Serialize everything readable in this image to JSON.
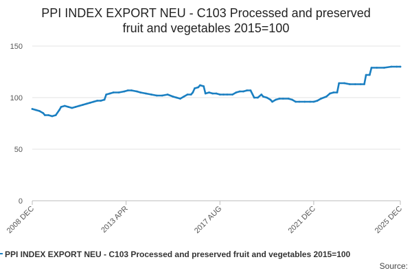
{
  "chart_data": {
    "type": "line",
    "title_lines": [
      "PPI INDEX EXPORT NEU - C103 Processed and preserved",
      "fruit and vegetables 2015=100"
    ],
    "x_tick_labels": [
      "2008 DEC",
      "2013 APR",
      "2017 AUG",
      "2021 DEC",
      "2025 DEC"
    ],
    "x_range": [
      "2008-12",
      "2025-12"
    ],
    "y_tick_labels": [
      "0",
      "50",
      "100",
      "150"
    ],
    "ylim": [
      0,
      150
    ],
    "grid": "horizontal",
    "legend_position": "bottom",
    "series": [
      {
        "name": "PPI INDEX EXPORT NEU - C103 Processed and preserved fruit and vegetables 2015=100",
        "color": "#1a7fc1",
        "points": [
          [
            "2008-12",
            89
          ],
          [
            "2009-02",
            88
          ],
          [
            "2009-04",
            87
          ],
          [
            "2009-06",
            85
          ],
          [
            "2009-07",
            83
          ],
          [
            "2009-09",
            83
          ],
          [
            "2009-11",
            82
          ],
          [
            "2010-01",
            83
          ],
          [
            "2010-03",
            88
          ],
          [
            "2010-04",
            91
          ],
          [
            "2010-06",
            92
          ],
          [
            "2010-08",
            91
          ],
          [
            "2010-10",
            90
          ],
          [
            "2010-12",
            91
          ],
          [
            "2011-02",
            92
          ],
          [
            "2011-04",
            93
          ],
          [
            "2011-06",
            94
          ],
          [
            "2011-08",
            95
          ],
          [
            "2011-10",
            96
          ],
          [
            "2011-12",
            97
          ],
          [
            "2012-02",
            97
          ],
          [
            "2012-04",
            98
          ],
          [
            "2012-05",
            103
          ],
          [
            "2012-07",
            104
          ],
          [
            "2012-09",
            105
          ],
          [
            "2012-12",
            105
          ],
          [
            "2013-03",
            106
          ],
          [
            "2013-05",
            107
          ],
          [
            "2013-07",
            107
          ],
          [
            "2013-10",
            106
          ],
          [
            "2013-12",
            105
          ],
          [
            "2014-03",
            104
          ],
          [
            "2014-06",
            103
          ],
          [
            "2014-09",
            102
          ],
          [
            "2014-12",
            102
          ],
          [
            "2015-03",
            103
          ],
          [
            "2015-06",
            101
          ],
          [
            "2015-08",
            100
          ],
          [
            "2015-10",
            99
          ],
          [
            "2015-12",
            101
          ],
          [
            "2016-02",
            103
          ],
          [
            "2016-04",
            103
          ],
          [
            "2016-05",
            105
          ],
          [
            "2016-06",
            109
          ],
          [
            "2016-08",
            110
          ],
          [
            "2016-09",
            112
          ],
          [
            "2016-11",
            111
          ],
          [
            "2016-12",
            104
          ],
          [
            "2017-02",
            105
          ],
          [
            "2017-04",
            104
          ],
          [
            "2017-06",
            104
          ],
          [
            "2017-08",
            103
          ],
          [
            "2017-10",
            103
          ],
          [
            "2017-12",
            103
          ],
          [
            "2018-03",
            103
          ],
          [
            "2018-05",
            105
          ],
          [
            "2018-07",
            106
          ],
          [
            "2018-09",
            106
          ],
          [
            "2018-11",
            107
          ],
          [
            "2019-01",
            107
          ],
          [
            "2019-03",
            100
          ],
          [
            "2019-05",
            100
          ],
          [
            "2019-07",
            103
          ],
          [
            "2019-08",
            101
          ],
          [
            "2019-10",
            100
          ],
          [
            "2019-12",
            98
          ],
          [
            "2020-01",
            96
          ],
          [
            "2020-03",
            98
          ],
          [
            "2020-05",
            99
          ],
          [
            "2020-07",
            99
          ],
          [
            "2020-10",
            99
          ],
          [
            "2020-12",
            98
          ],
          [
            "2021-02",
            96
          ],
          [
            "2021-04",
            96
          ],
          [
            "2021-07",
            96
          ],
          [
            "2021-10",
            96
          ],
          [
            "2021-12",
            96
          ],
          [
            "2022-02",
            97
          ],
          [
            "2022-04",
            99
          ],
          [
            "2022-07",
            101
          ],
          [
            "2022-09",
            104
          ],
          [
            "2022-11",
            105
          ],
          [
            "2023-01",
            105
          ],
          [
            "2023-02",
            114
          ],
          [
            "2023-05",
            114
          ],
          [
            "2023-08",
            113
          ],
          [
            "2023-11",
            113
          ],
          [
            "2024-02",
            113
          ],
          [
            "2024-04",
            113
          ],
          [
            "2024-05",
            122
          ],
          [
            "2024-07",
            122
          ],
          [
            "2024-08",
            129
          ],
          [
            "2024-11",
            129
          ],
          [
            "2025-03",
            129
          ],
          [
            "2025-07",
            130
          ],
          [
            "2025-10",
            130
          ],
          [
            "2025-12",
            130
          ]
        ]
      }
    ]
  },
  "source_label": "Source:"
}
